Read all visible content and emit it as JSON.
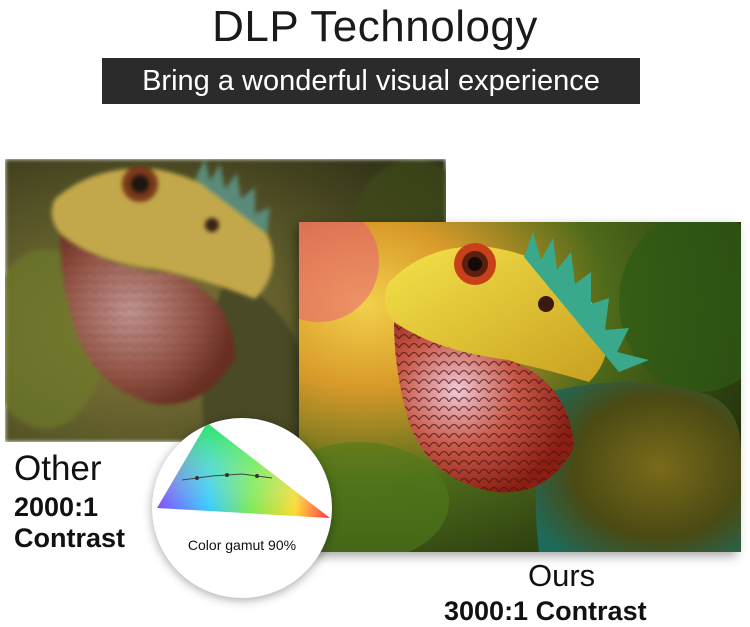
{
  "header": {
    "title": "DLP Technology",
    "subtitle": "Bring a wonderful visual experience"
  },
  "comparison": {
    "other": {
      "label": "Other",
      "contrast": "2000:1 Contrast"
    },
    "ours": {
      "label": "Ours",
      "contrast": "3000:1 Contrast"
    },
    "gamut": {
      "label": "Color gamut 90%"
    }
  },
  "images": {
    "other_photo": "lizard-photo-low-contrast",
    "ours_photo": "lizard-photo-high-contrast",
    "gamut_graphic": "color-gamut-triangle"
  },
  "colors": {
    "subtitle_bg": "#2b2b2b",
    "text": "#111111"
  }
}
